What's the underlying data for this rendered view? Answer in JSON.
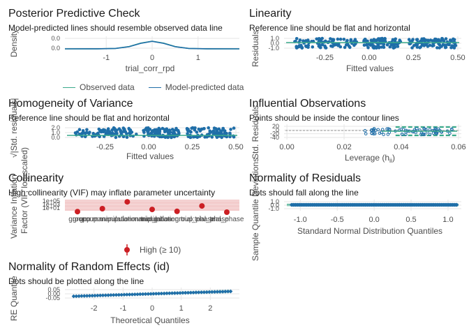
{
  "colors": {
    "observed": "#3aaa8b",
    "model": "#1f6ea8",
    "reference": "#3aaa8b",
    "points": "#1f6ea8",
    "high_vif": "#cc1f24",
    "band_red": "#f3cccc",
    "grid": "#e6e6e6"
  },
  "chart_data": [
    {
      "id": "ppc",
      "type": "line",
      "title": "Posterior Predictive Check",
      "subtitle": "Model-predicted lines should resemble observed data line",
      "xlabel": "trial_corr_rpd",
      "ylabel": "Density",
      "xlim": [
        -1.9,
        1.9
      ],
      "x_ticks": [
        -1,
        0,
        1
      ],
      "y_ticks": [
        "0.0",
        "0.0"
      ],
      "legend": {
        "placement": "bottom",
        "entries": [
          "Observed data",
          "Model-predicted data"
        ]
      },
      "series": [
        {
          "name": "Observed data",
          "x": [
            -1.9,
            -1.2,
            -0.8,
            -0.5,
            -0.25,
            0,
            0.25,
            0.5,
            0.8,
            1.2,
            1.9
          ],
          "values": [
            0,
            0.01,
            0.05,
            0.3,
            0.75,
            1,
            0.75,
            0.3,
            0.05,
            0.01,
            0
          ]
        },
        {
          "name": "Model-predicted data",
          "x": [
            -1.9,
            -1.2,
            -0.8,
            -0.5,
            -0.25,
            0,
            0.25,
            0.5,
            0.8,
            1.2,
            1.9
          ],
          "values": [
            0,
            0.01,
            0.05,
            0.28,
            0.72,
            0.98,
            0.72,
            0.28,
            0.05,
            0.01,
            0
          ]
        }
      ]
    },
    {
      "id": "linearity",
      "type": "scatter",
      "title": "Linearity",
      "subtitle": "Reference line should be flat and horizontal",
      "xlabel": "Fitted values",
      "ylabel": "Residuals",
      "xlim": [
        -0.48,
        0.52
      ],
      "x_ticks": [
        "-0.25",
        "0.00",
        "0.25",
        "0.50"
      ],
      "y_ticks": [
        "1.0",
        "0.0",
        "-1.0"
      ],
      "clusters_x": [
        [
          -0.42,
          -0.07
        ],
        [
          -0.03,
          0.18
        ],
        [
          0.22,
          0.49
        ]
      ]
    },
    {
      "id": "homogeneity",
      "type": "scatter",
      "title": "Homogeneity of Variance",
      "subtitle": "Reference line should be flat and horizontal",
      "xlabel": "Fitted values",
      "ylabel": "√|Std. residuals|",
      "xlim": [
        -0.48,
        0.52
      ],
      "x_ticks": [
        "-0.25",
        "0.00",
        "0.25",
        "0.50"
      ],
      "y_ticks": [
        "2.0",
        "1.0",
        "0.0"
      ],
      "clusters_x": [
        [
          -0.42,
          -0.07
        ],
        [
          -0.03,
          0.18
        ],
        [
          0.22,
          0.49
        ]
      ]
    },
    {
      "id": "influential",
      "type": "scatter",
      "title": "Influential Observations",
      "subtitle": "Points should be inside the contour lines",
      "xlabel": "Leverage (hii)",
      "ylabel": "Std. Residuals",
      "xlim": [
        -0.001,
        0.061
      ],
      "x_ticks": [
        "0.00",
        "0.02",
        "0.04",
        "0.06"
      ],
      "y_ticks": [
        "20",
        "0",
        "-20",
        "-40"
      ],
      "contour_x": [
        0.038,
        0.062
      ]
    },
    {
      "id": "collinearity",
      "type": "scatter",
      "title": "Collinearity",
      "subtitle": "High collinearity (VIF) may inflate parameter uncertainty",
      "xlabel": "",
      "ylabel": "Variance Inflation\nFactor (VIF, log-scaled)",
      "categories": [
        "group",
        "group:manipulation",
        "group:manipulation:trial_phase",
        "manipulation",
        "manipulation:trial_phase",
        "group:trial_phase",
        "trial_phase"
      ],
      "y_ticks": [
        "1e+05",
        "1e+03",
        "1e+01"
      ],
      "values": [
        12,
        55,
        1800,
        36,
        14,
        220,
        9
      ],
      "legend": {
        "placement": "bottom",
        "entries": [
          "High (≥ 10)"
        ]
      }
    },
    {
      "id": "normality_residuals",
      "type": "scatter",
      "title": "Normality of Residuals",
      "subtitle": "Dots should fall along the line",
      "xlabel": "Standard Normal Distribution Quantiles",
      "ylabel": "Sample Quantile Deviations",
      "xlim": [
        -1.22,
        1.18
      ],
      "x_ticks": [
        "-1.0",
        "-0.5",
        "0.0",
        "0.5",
        "1.0"
      ],
      "y_ticks": [
        "1.0",
        "0.0",
        "-1.0"
      ]
    },
    {
      "id": "normality_random",
      "type": "scatter",
      "title": "Normality of Random Effects (id)",
      "subtitle": "Dots should be plotted along the line",
      "xlabel": "Theoretical Quantiles",
      "ylabel": "RE Quantile",
      "xlim": [
        -3.0,
        3.0
      ],
      "x_ticks": [
        "-2",
        "-1",
        "0",
        "1",
        "2"
      ],
      "y_ticks": [
        "0.05",
        "0.00",
        "-0.05"
      ]
    }
  ]
}
